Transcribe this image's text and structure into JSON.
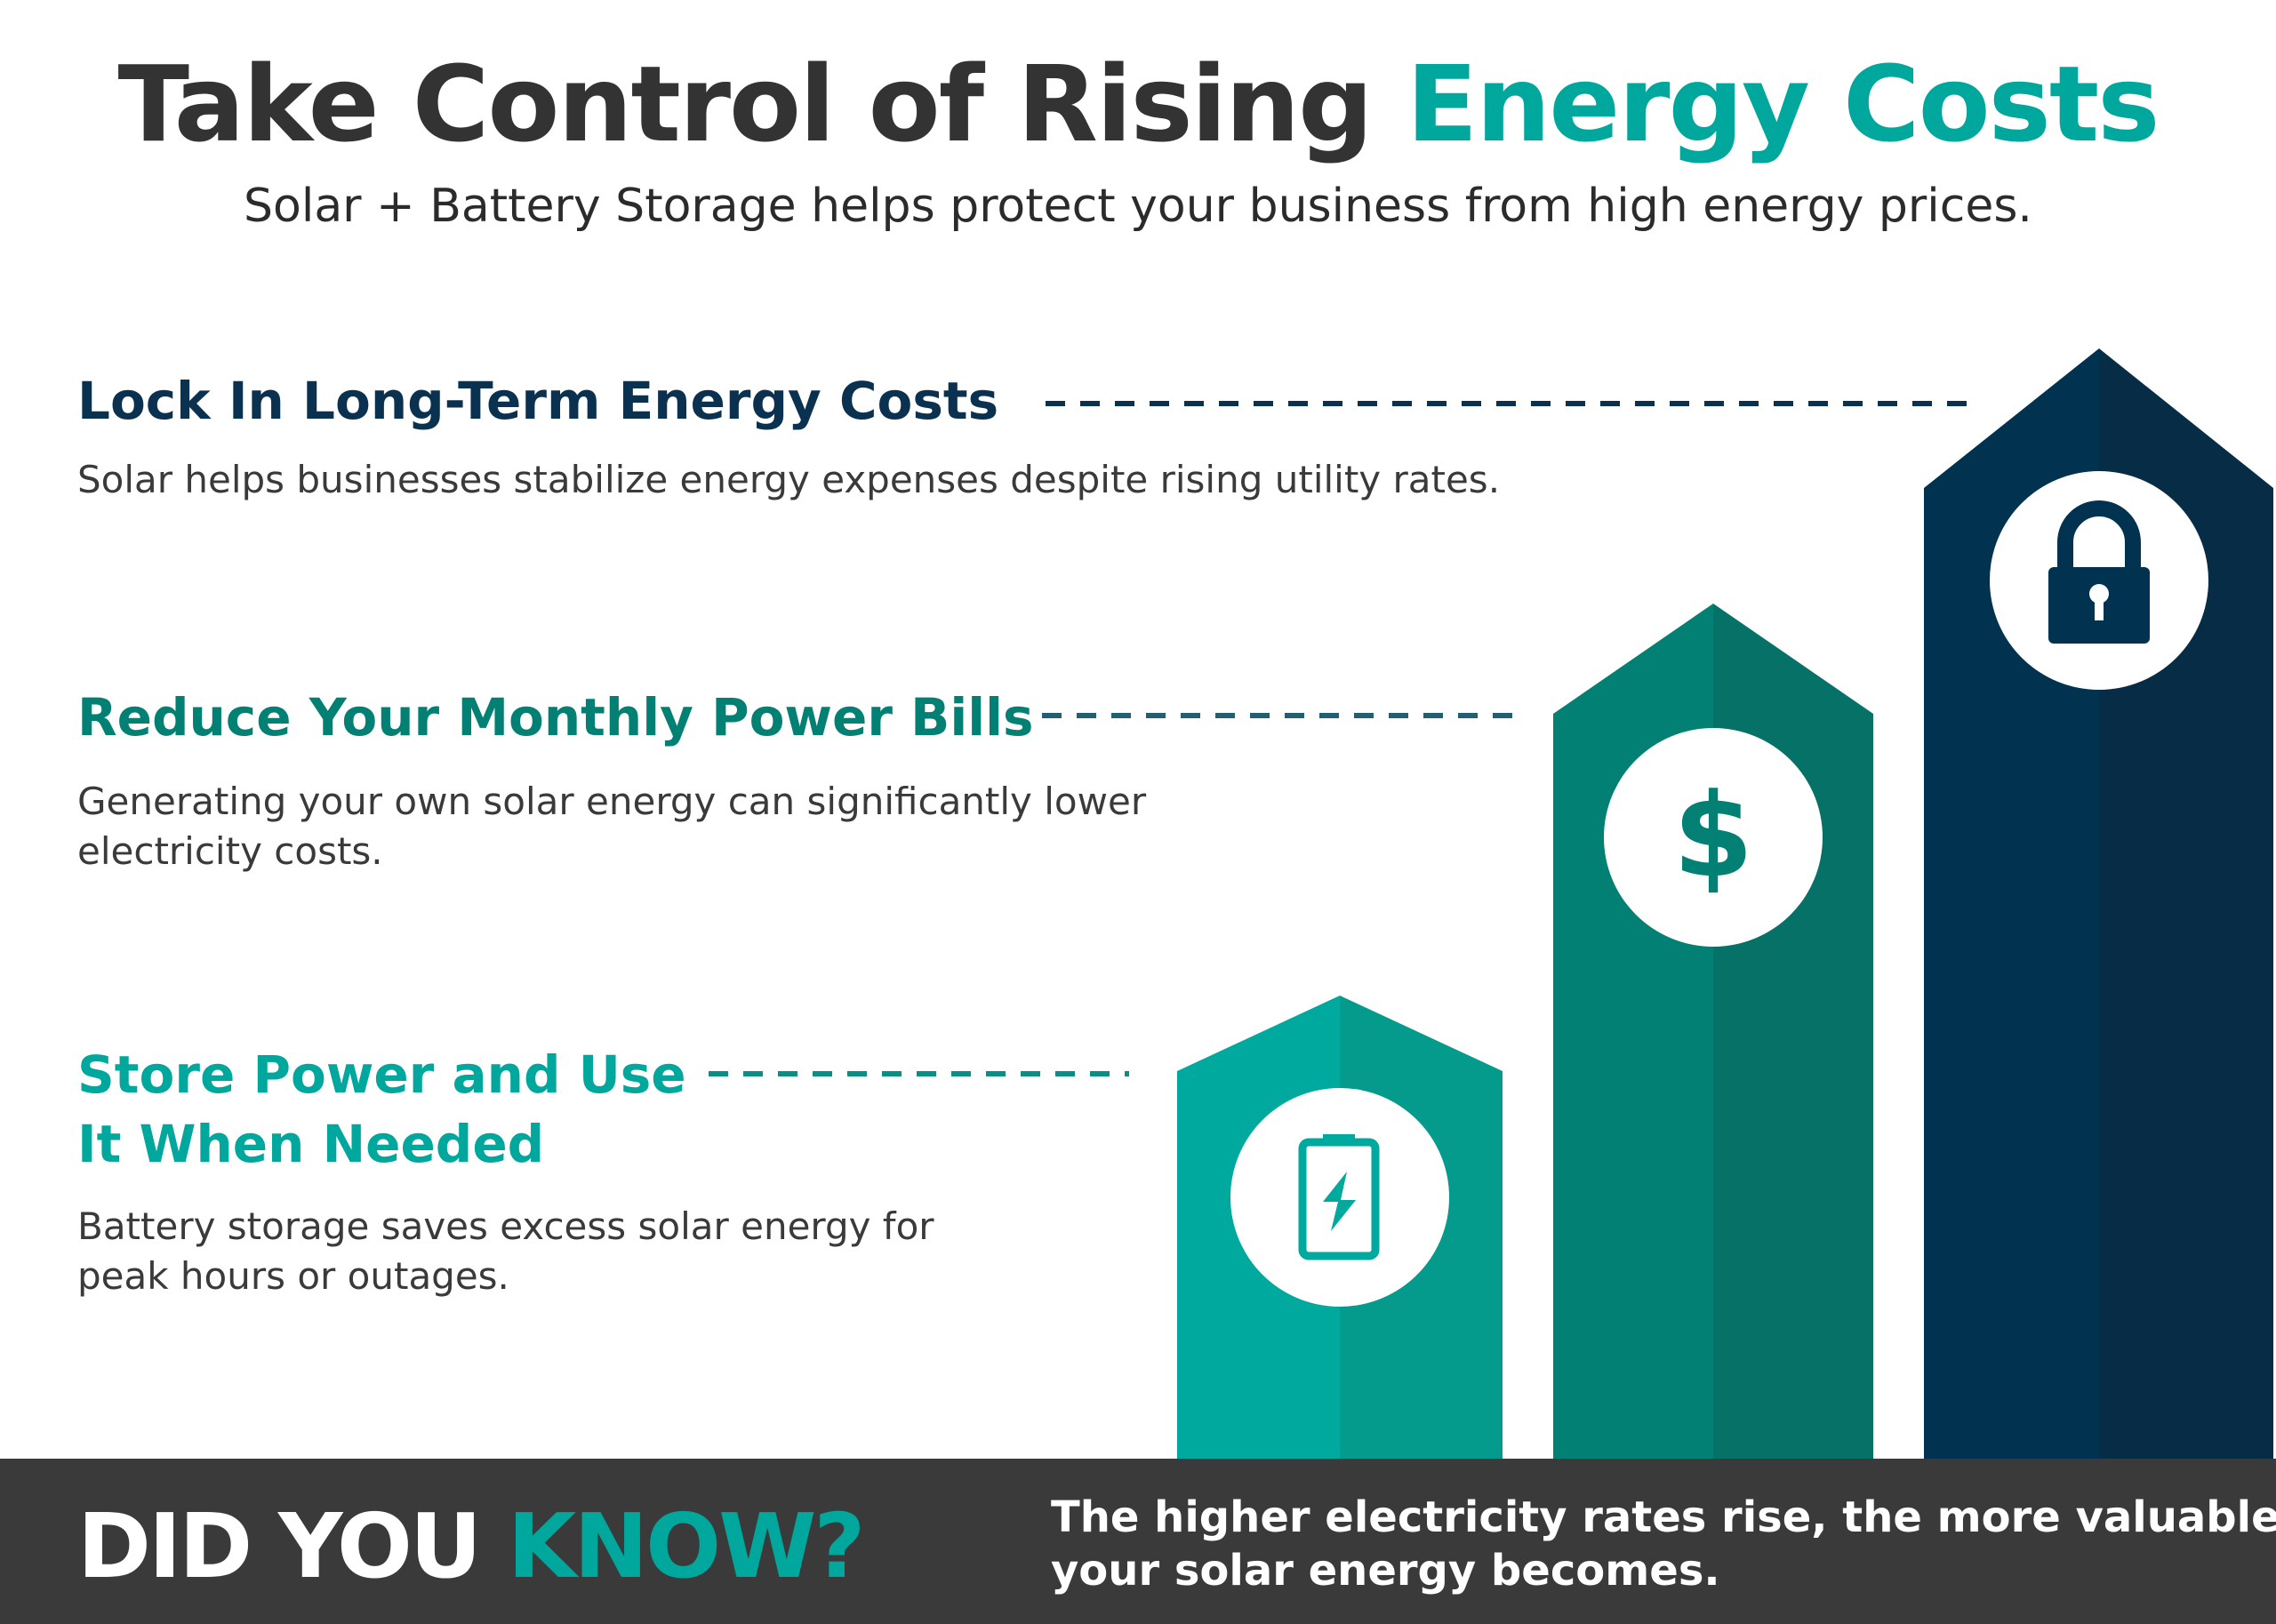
{
  "header": {
    "title_main": "Take Control of Rising ",
    "title_accent": "Energy Costs",
    "subtitle": "Solar + Battery Storage helps protect your business from high energy prices."
  },
  "benefits": [
    {
      "heading_lines": [
        "Lock In Long-Term Energy Costs"
      ],
      "body_lines": [
        "Solar helps businesses stabilize energy expenses despite rising utility rates."
      ],
      "icon": "lock-icon",
      "color": "#0a3250"
    },
    {
      "heading_lines": [
        "Reduce Your Monthly Power Bills"
      ],
      "body_lines": [
        "Generating your own solar energy can significantly lower",
        "electricity costs."
      ],
      "icon": "dollar-icon",
      "color": "#038074"
    },
    {
      "heading_lines": [
        "Store Power and Use",
        "It When Needed"
      ],
      "body_lines": [
        "Battery storage saves excess solar energy for",
        "peak hours or outages."
      ],
      "icon": "battery-charging-icon",
      "color": "#00a79d"
    }
  ],
  "footer": {
    "label_main": "DID YOU ",
    "label_accent": "KNOW?",
    "fact_lines": [
      "The higher electricity rates rise, the more valuable",
      "your solar energy becomes."
    ]
  },
  "colors": {
    "teal": "#00a79d",
    "dark_teal": "#038074",
    "navy": "#01324f",
    "footer_bg": "#3a3a3a"
  }
}
